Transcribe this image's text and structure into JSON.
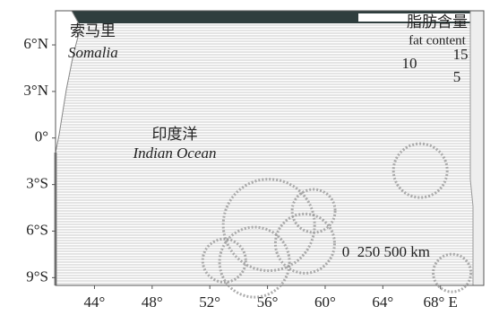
{
  "map": {
    "xlim": [
      41.3,
      71
    ],
    "ylim": [
      -9.5,
      8.2
    ],
    "xticks": [
      {
        "value": 44,
        "label": "44°"
      },
      {
        "value": 48,
        "label": "48°"
      },
      {
        "value": 52,
        "label": "52°"
      },
      {
        "value": 56,
        "label": "56°"
      },
      {
        "value": 60,
        "label": "60°"
      },
      {
        "value": 64,
        "label": "64°"
      },
      {
        "value": 68,
        "label": "68° E"
      }
    ],
    "yticks": [
      {
        "value": 6,
        "label": "6°N"
      },
      {
        "value": 3,
        "label": "3°N"
      },
      {
        "value": 0,
        "label": "0°"
      },
      {
        "value": -3,
        "label": "3°S"
      },
      {
        "value": -6,
        "label": "6°S"
      },
      {
        "value": -9,
        "label": "9°S"
      }
    ],
    "places": [
      {
        "label_zh": "索马里",
        "label_en": "Somalia"
      },
      {
        "label_zh": "印度洋",
        "label_en": "Indian Ocean"
      }
    ],
    "points": [
      {
        "lon": 56.1,
        "lat": -5.6,
        "size": 17
      },
      {
        "lon": 55.1,
        "lat": -8.0,
        "size": 13
      },
      {
        "lon": 58.6,
        "lat": -6.8,
        "size": 11
      },
      {
        "lon": 53.0,
        "lat": -7.9,
        "size": 8
      },
      {
        "lon": 66.6,
        "lat": -2.1,
        "size": 10
      },
      {
        "lon": 68.8,
        "lat": -8.7,
        "size": 7
      },
      {
        "lon": 59.2,
        "lat": -4.7,
        "size": 8
      }
    ],
    "legend": {
      "title_zh": "脂肪含量",
      "title_en": "fat content",
      "sizes": [
        10,
        15,
        5
      ]
    },
    "scale_bar": "0  250 500 km"
  }
}
